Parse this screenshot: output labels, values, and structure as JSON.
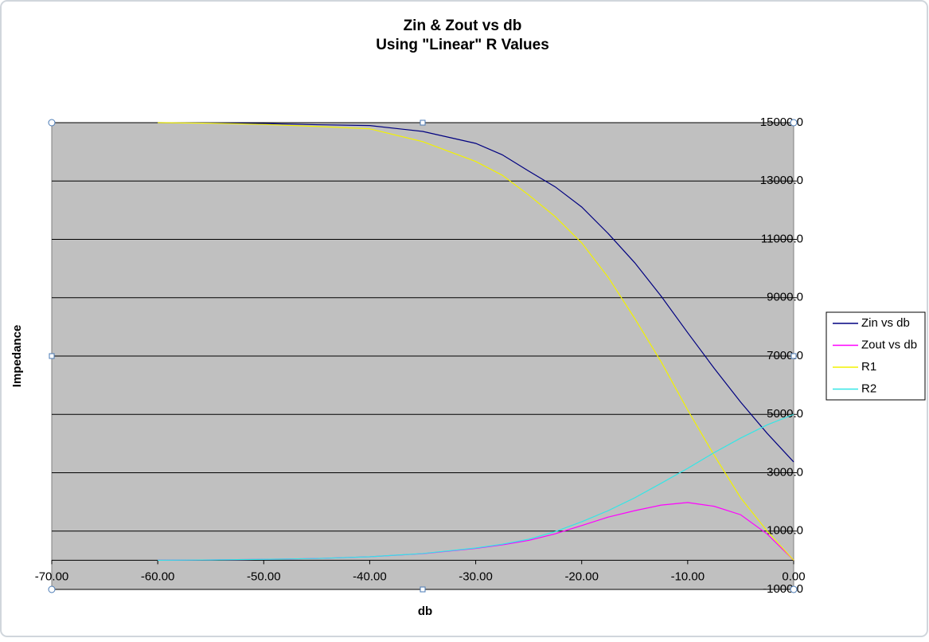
{
  "chart_data": {
    "type": "line",
    "title": "Zin & Zout vs db",
    "subtitle": "Using \"Linear\" R Values",
    "x_label": "db",
    "y_label": "Impedance",
    "x": [
      -60,
      -55,
      -50,
      -45,
      -40,
      -35,
      -30,
      -27.5,
      -25,
      -22.5,
      -20,
      -17.5,
      -15,
      -12.5,
      -10,
      -7.5,
      -5,
      -2.5,
      0
    ],
    "series": [
      {
        "name": "Zin vs db",
        "color": "#000080",
        "values": [
          15000,
          14990,
          14970,
          14930,
          14900,
          14700,
          14290,
          13900,
          13340,
          12800,
          12110,
          11200,
          10200,
          9050,
          7800,
          6580,
          5420,
          4350,
          3370
        ]
      },
      {
        "name": "Zout vs db",
        "color": "#ff00ff",
        "values": [
          0,
          10,
          30,
          60,
          119,
          226,
          407,
          527,
          680,
          905,
          1190,
          1480,
          1700,
          1890,
          1980,
          1850,
          1560,
          900,
          0
        ]
      },
      {
        "name": "R1",
        "color": "#f2f200",
        "values": [
          15000,
          14980,
          14940,
          14870,
          14790,
          14350,
          13670,
          13200,
          12520,
          11780,
          10880,
          9700,
          8290,
          6800,
          5150,
          3600,
          2140,
          1000,
          0
        ]
      },
      {
        "name": "R2",
        "color": "#33e6e6",
        "values": [
          0,
          10,
          30,
          60,
          120,
          230,
          420,
          550,
          720,
          980,
          1320,
          1700,
          2140,
          2640,
          3150,
          3690,
          4190,
          4640,
          5000
        ]
      }
    ],
    "xlim": [
      -70,
      0
    ],
    "xticks": [
      {
        "value": -70,
        "label": "-70.00"
      },
      {
        "value": -60,
        "label": "-60.00"
      },
      {
        "value": -50,
        "label": "-50.00"
      },
      {
        "value": -40,
        "label": "-40.00"
      },
      {
        "value": -30,
        "label": "-30.00"
      },
      {
        "value": -20,
        "label": "-20.00"
      },
      {
        "value": -10,
        "label": "-10.00"
      },
      {
        "value": 0,
        "label": "0.00"
      }
    ],
    "ylim": [
      -1000,
      15000
    ],
    "yticks": [
      {
        "value": -1000,
        "label": "-1000.0"
      },
      {
        "value": 1000,
        "label": "1000.0"
      },
      {
        "value": 3000,
        "label": "3000.0"
      },
      {
        "value": 5000,
        "label": "5000.0"
      },
      {
        "value": 7000,
        "label": "7000.0"
      },
      {
        "value": 9000,
        "label": "9000.0"
      },
      {
        "value": 11000,
        "label": "11000.0"
      },
      {
        "value": 13000,
        "label": "13000.0"
      },
      {
        "value": 15000,
        "label": "15000.0"
      }
    ],
    "grid": true,
    "legend": "right"
  }
}
